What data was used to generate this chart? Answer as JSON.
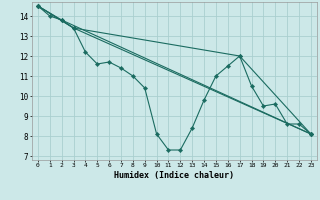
{
  "xlabel": "Humidex (Indice chaleur)",
  "background_color": "#cce8e8",
  "grid_color": "#aacfcf",
  "line_color": "#1a6b60",
  "xlim": [
    -0.5,
    23.5
  ],
  "ylim": [
    6.8,
    14.7
  ],
  "xticks": [
    0,
    1,
    2,
    3,
    4,
    5,
    6,
    7,
    8,
    9,
    10,
    11,
    12,
    13,
    14,
    15,
    16,
    17,
    18,
    19,
    20,
    21,
    22,
    23
  ],
  "yticks": [
    7,
    8,
    9,
    10,
    11,
    12,
    13,
    14
  ],
  "series1": [
    [
      0,
      14.5
    ],
    [
      1,
      14.0
    ],
    [
      2,
      13.8
    ],
    [
      3,
      13.4
    ],
    [
      4,
      12.2
    ],
    [
      5,
      11.6
    ],
    [
      6,
      11.7
    ],
    [
      7,
      11.4
    ],
    [
      8,
      11.0
    ],
    [
      9,
      10.4
    ],
    [
      10,
      8.1
    ],
    [
      11,
      7.3
    ],
    [
      12,
      7.3
    ],
    [
      13,
      8.4
    ],
    [
      14,
      9.8
    ],
    [
      15,
      11.0
    ],
    [
      16,
      11.5
    ],
    [
      17,
      12.0
    ],
    [
      18,
      10.5
    ],
    [
      19,
      9.5
    ],
    [
      20,
      9.6
    ],
    [
      21,
      8.6
    ],
    [
      22,
      8.6
    ],
    [
      23,
      8.1
    ]
  ],
  "series2": [
    [
      0,
      14.5
    ],
    [
      3,
      13.4
    ],
    [
      23,
      8.1
    ]
  ],
  "series3": [
    [
      0,
      14.5
    ],
    [
      2,
      13.8
    ],
    [
      23,
      8.1
    ]
  ],
  "series4": [
    [
      0,
      14.5
    ],
    [
      3,
      13.4
    ],
    [
      17,
      12.0
    ],
    [
      23,
      8.1
    ]
  ]
}
